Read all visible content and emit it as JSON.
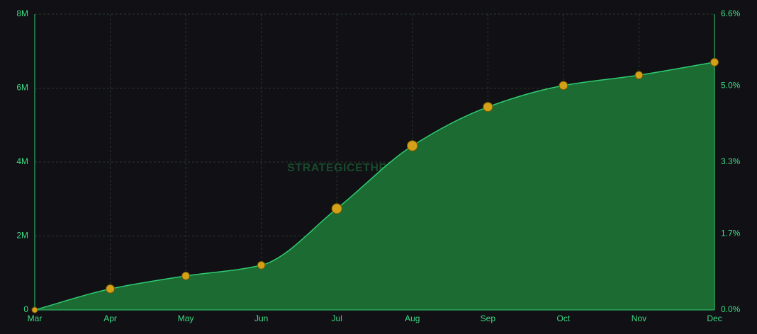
{
  "chart_data": {
    "type": "area",
    "annotation": "STRATEGICETHRESERVE.XYZ",
    "categories": [
      "Mar",
      "Apr",
      "May",
      "Jun",
      "Jul",
      "Aug",
      "Sep",
      "Oct",
      "Nov",
      "Dec"
    ],
    "series": [
      {
        "color": "#2ecc71",
        "fill": "#1b6b32",
        "marker_color": "#d4a017",
        "values": [
          0,
          570000,
          920000,
          1210000,
          2740000,
          4440000,
          5490000,
          6070000,
          6350000,
          6700000
        ]
      }
    ],
    "ylim": [
      0,
      8000000
    ],
    "yticks": [
      0,
      {
        "value": 2000000,
        "label": "2M"
      },
      {
        "value": 4000000,
        "label": "4M"
      },
      {
        "value": 6000000,
        "label": "6M"
      },
      {
        "value": 8000000,
        "label": "8M"
      }
    ],
    "y2lim": [
      0,
      6.6
    ],
    "y2ticks": [
      {
        "value": 0,
        "label": "0.0%"
      },
      {
        "value": 1.7,
        "label": "1.7%"
      },
      {
        "value": 3.3,
        "label": "3.3%"
      },
      {
        "value": 5.0,
        "label": "5.0%"
      },
      {
        "value": 6.6,
        "label": "6.6%"
      }
    ],
    "grid": true
  }
}
